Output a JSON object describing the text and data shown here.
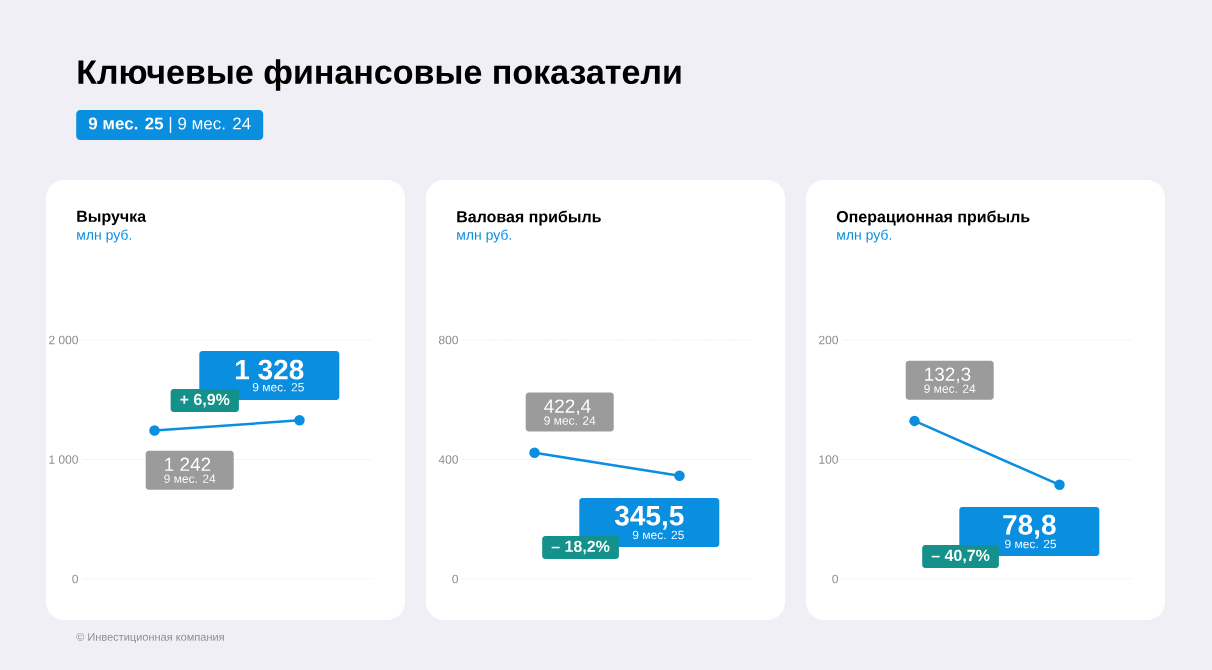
{
  "chart_data": [
    {
      "type": "other",
      "title": "Ключевые финансовые показатели",
      "subtitle": "**9 мес. 25** | 9 мес. 24",
      "annotations": [
        "© Инвестиционная компания"
      ]
    },
    {
      "type": "line",
      "title": "Выручка",
      "subtitle": "млн руб.",
      "categories": [
        null,
        null
      ],
      "series": [
        {
          "color": "#0a8ee0",
          "values": [
            1242,
            1328
          ],
          "value_labels": [
            "1 242",
            "1 328"
          ]
        }
      ],
      "annotations": [
        "9 мес. 24",
        "9 мес. 25",
        "+ 6,9%"
      ],
      "ylim": [
        0,
        2000
      ],
      "yticks": [
        0,
        {
          "value": 1000,
          "label": "1 000"
        },
        {
          "value": 2000,
          "label": "2 000"
        }
      ],
      "grid": "y",
      "marker": "circle",
      "tick_labels": "y"
    },
    {
      "type": "line",
      "title": "Валовая прибыль",
      "subtitle": "млн руб.",
      "categories": [
        null,
        null
      ],
      "series": [
        {
          "color": "#0a8ee0",
          "values": [
            422.4,
            345.5
          ],
          "value_labels": [
            "422,4",
            "345,5"
          ]
        }
      ],
      "annotations": [
        "9 мес. 24",
        "9 мес. 25",
        "– 18,2%"
      ],
      "ylim": [
        0,
        800
      ],
      "yticks": [
        0,
        400,
        800
      ],
      "grid": "y",
      "marker": "circle",
      "tick_labels": "y"
    },
    {
      "type": "line",
      "title": "Операционная прибыль",
      "subtitle": "млн руб.",
      "categories": [
        null,
        null
      ],
      "series": [
        {
          "color": "#0a8ee0",
          "values": [
            132.3,
            78.8
          ],
          "value_labels": [
            "132,3",
            "78,8"
          ]
        }
      ],
      "annotations": [
        "9 мес. 24",
        "9 мес. 25",
        "– 40,7%"
      ],
      "ylim": [
        0,
        200
      ],
      "yticks": [
        0,
        100,
        200
      ],
      "grid": "y",
      "marker": "circle",
      "tick_labels": "y"
    }
  ]
}
